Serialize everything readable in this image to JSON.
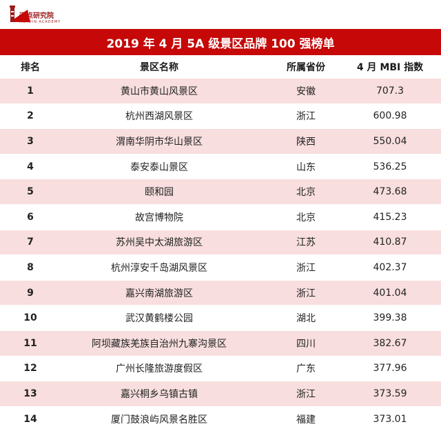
{
  "logo": {
    "name": "迈点研究院",
    "subtitle": "MEADIN ACADEMY"
  },
  "colors": {
    "accent": "#c60808",
    "row_tint": "#f8dede",
    "logo": "#9a1b1b"
  },
  "title": "2019 年 4 月 5A 级景区品牌 100 强榜单",
  "headers": {
    "rank": "排名",
    "name": "景区名称",
    "province": "所属省份",
    "index": "4 月 MBI 指数"
  },
  "rows": [
    {
      "rank": "1",
      "name": "黄山市黄山风景区",
      "province": "安徽",
      "index": "707.3"
    },
    {
      "rank": "2",
      "name": "杭州西湖风景区",
      "province": "浙江",
      "index": "600.98"
    },
    {
      "rank": "3",
      "name": "渭南华阴市华山景区",
      "province": "陕西",
      "index": "550.04"
    },
    {
      "rank": "4",
      "name": "泰安泰山景区",
      "province": "山东",
      "index": "536.25"
    },
    {
      "rank": "5",
      "name": "颐和园",
      "province": "北京",
      "index": "473.68"
    },
    {
      "rank": "6",
      "name": "故宫博物院",
      "province": "北京",
      "index": "415.23"
    },
    {
      "rank": "7",
      "name": "苏州吴中太湖旅游区",
      "province": "江苏",
      "index": "410.87"
    },
    {
      "rank": "8",
      "name": "杭州淳安千岛湖风景区",
      "province": "浙江",
      "index": "402.37"
    },
    {
      "rank": "9",
      "name": "嘉兴南湖旅游区",
      "province": "浙江",
      "index": "401.04"
    },
    {
      "rank": "10",
      "name": "武汉黄鹤楼公园",
      "province": "湖北",
      "index": "399.38"
    },
    {
      "rank": "11",
      "name": "阿坝藏族羌族自治州九寨沟景区",
      "province": "四川",
      "index": "382.67"
    },
    {
      "rank": "12",
      "name": "广州长隆旅游度假区",
      "province": "广东",
      "index": "377.96"
    },
    {
      "rank": "13",
      "name": "嘉兴桐乡乌镇古镇",
      "province": "浙江",
      "index": "373.59"
    },
    {
      "rank": "14",
      "name": "厦门鼓浪屿风景名胜区",
      "province": "福建",
      "index": "373.01"
    }
  ]
}
